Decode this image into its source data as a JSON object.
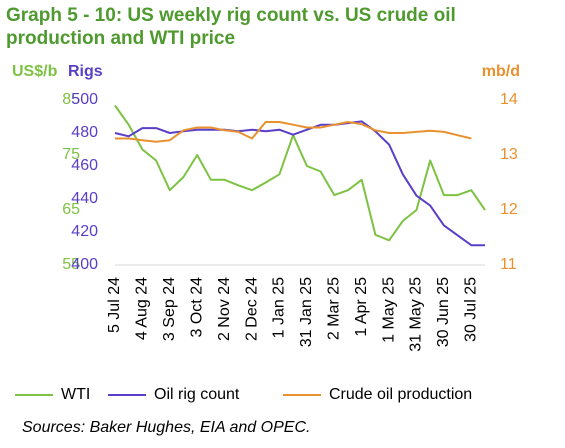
{
  "chart_data": {
    "type": "line",
    "title": "Graph 5 - 10: US weekly rig count vs. US crude oil production and WTI price",
    "y_label": "US$/b",
    "y2_label": "Rigs",
    "y3_label": "mb/d",
    "categories": [
      "5 Jul 24",
      null,
      "4 Aug 24",
      null,
      "3 Sep 24",
      null,
      "3 Oct 24",
      null,
      "2 Nov 24",
      null,
      "2 Dec 24",
      null,
      "1 Jan 25",
      null,
      "31 Jan 25",
      null,
      "2 Mar 25",
      null,
      "1 Apr 25",
      null,
      "1 May 25",
      null,
      "31 May 25",
      null,
      "30 Jun 25",
      null,
      "30 Jul 25",
      null
    ],
    "ylim": [
      55,
      85
    ],
    "yticks": [
      55,
      65,
      75,
      85
    ],
    "y2lim": [
      400,
      500
    ],
    "y2ticks": [
      400,
      420,
      440,
      460,
      480,
      500
    ],
    "y3lim": [
      11,
      14
    ],
    "y3ticks": [
      11,
      12,
      13,
      14
    ],
    "series": [
      {
        "name": "WTI",
        "color": "#7dc242",
        "axis": "y",
        "values": [
          84,
          80.5,
          76,
          74,
          68.6,
          71,
          75,
          70.5,
          70.5,
          69.5,
          68.6,
          70,
          71.5,
          78.6,
          73,
          72,
          67.7,
          68.6,
          70.5,
          60.5,
          59.5,
          63,
          65,
          74,
          67.7,
          67.7,
          68.6,
          65
        ]
      },
      {
        "name": "Oil rig count",
        "color": "#5a3ec8",
        "axis": "y2",
        "values": [
          480,
          478,
          483,
          483,
          480,
          481,
          482,
          482,
          482,
          481,
          482,
          481,
          482,
          479,
          482,
          485,
          485,
          486,
          487,
          481,
          473,
          455,
          442,
          436,
          424,
          418,
          412,
          412
        ]
      },
      {
        "name": "Crude oil production",
        "color": "#e8912e",
        "axis": "y3",
        "values": [
          13.3,
          13.3,
          13.27,
          13.24,
          13.27,
          13.45,
          13.5,
          13.5,
          13.45,
          13.42,
          13.3,
          13.6,
          13.6,
          13.55,
          13.5,
          13.5,
          13.55,
          13.6,
          13.56,
          13.45,
          13.4,
          13.4,
          13.42,
          13.44,
          13.42,
          13.36,
          13.3,
          null
        ]
      }
    ],
    "source": "Sources: Baker Hughes, EIA and OPEC."
  }
}
